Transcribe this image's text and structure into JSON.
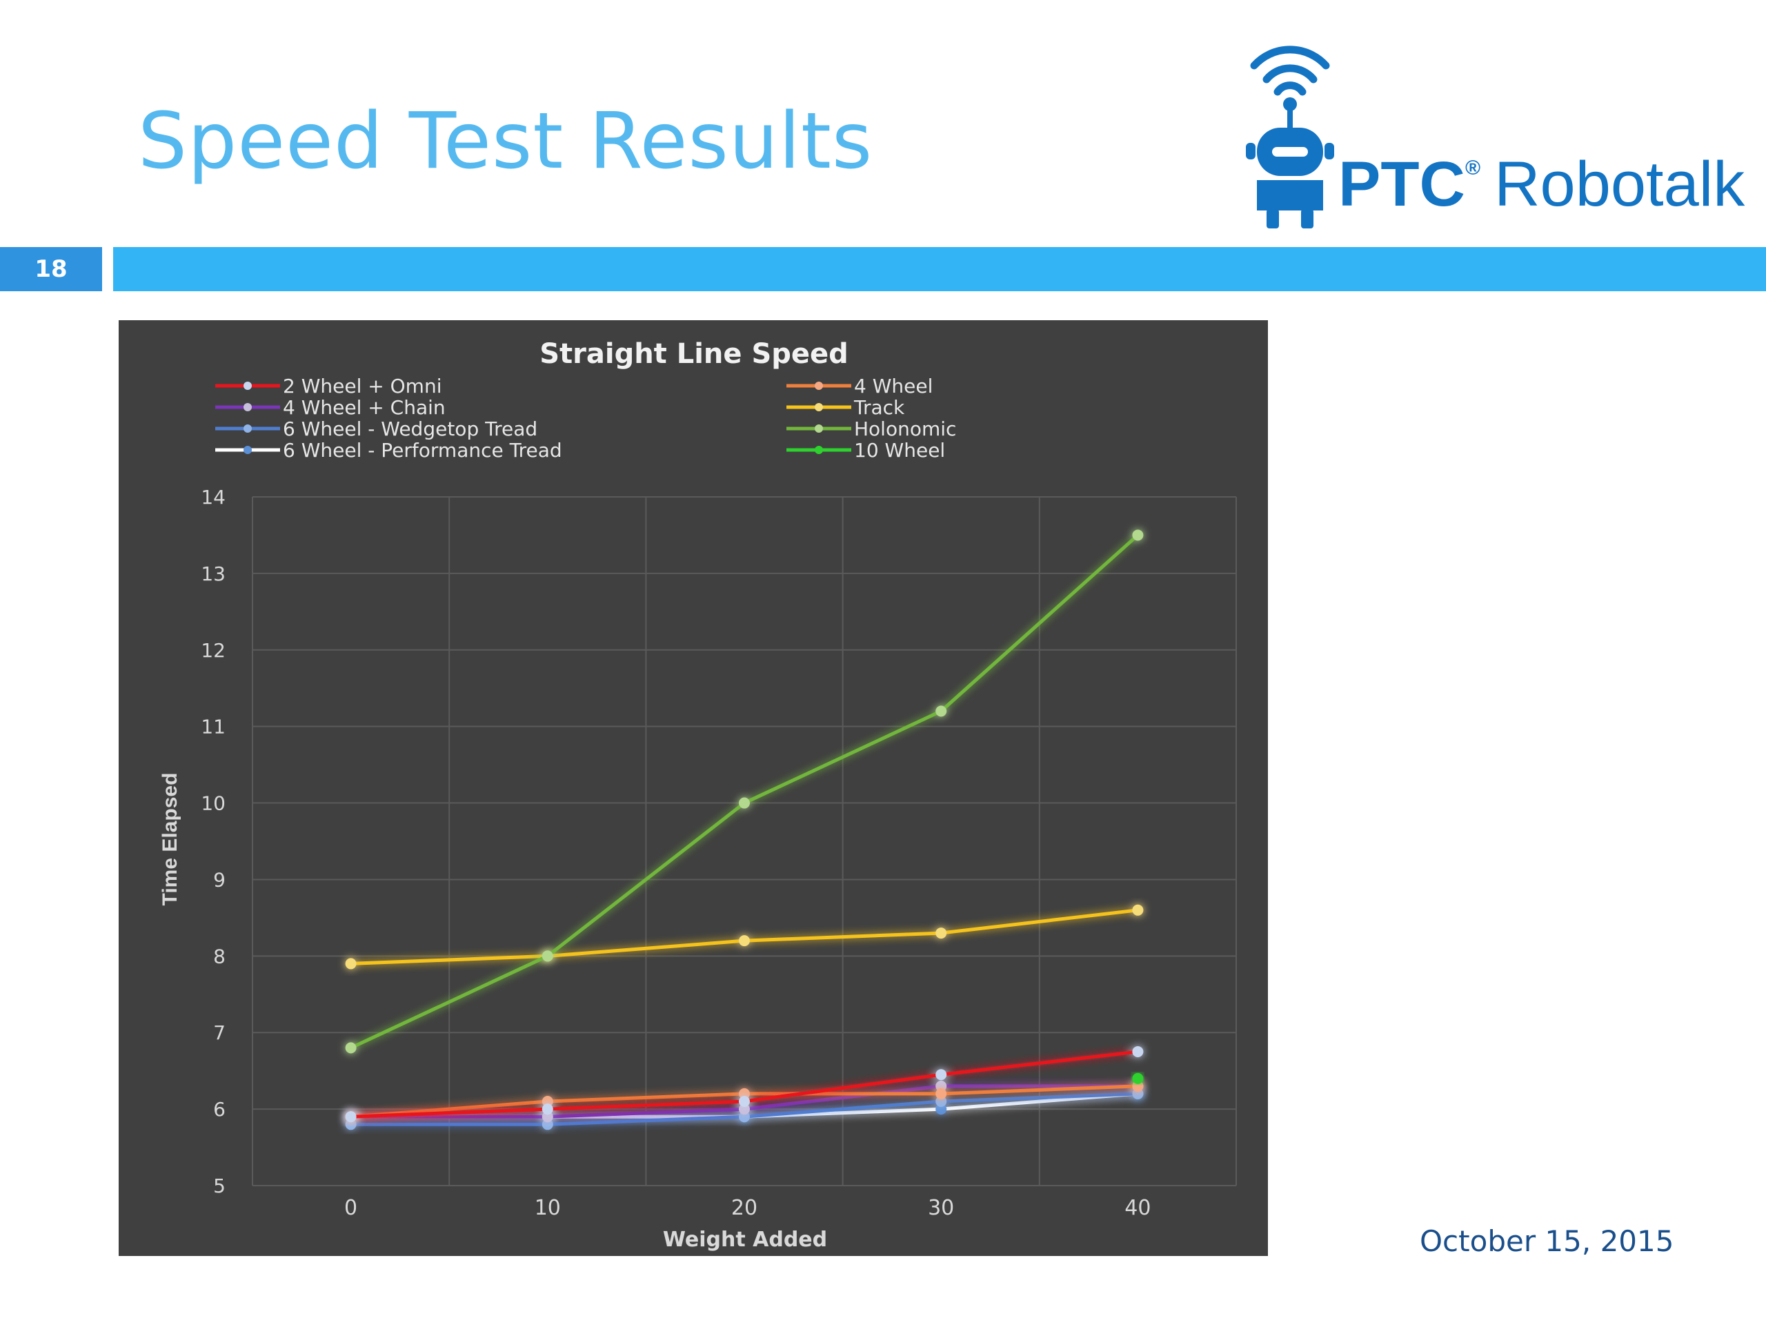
{
  "slide": {
    "title": "Speed Test Results",
    "page_number": "18",
    "date": "October 15, 2015"
  },
  "logo": {
    "brand": "PTC",
    "registered_mark": "®",
    "product": "Robotalk",
    "icon": "robot-wifi-icon",
    "color": "#1474c4"
  },
  "colors": {
    "title": "#55b9ef",
    "band": "#33b4f4",
    "badge": "#2f93e0",
    "chart_background": "#404040",
    "date": "#1a4f8b"
  },
  "chart_data": {
    "type": "line",
    "title": "Straight Line Speed",
    "xlabel": "Weight Added",
    "ylabel": "Time Elapsed",
    "x": [
      0,
      10,
      20,
      30,
      40
    ],
    "ylim": [
      5,
      14
    ],
    "yticks": [
      5,
      6,
      7,
      8,
      9,
      10,
      11,
      12,
      13,
      14
    ],
    "grid": true,
    "legend_position": "top",
    "series": [
      {
        "name": "2 Wheel + Omni",
        "color": "#e8141e",
        "marker": "#c9d6f0",
        "values": [
          5.9,
          6.0,
          6.1,
          6.45,
          6.75
        ]
      },
      {
        "name": "4 Wheel",
        "color": "#ef7f3c",
        "marker": "#f5a882",
        "values": [
          5.9,
          6.1,
          6.2,
          6.2,
          6.3
        ]
      },
      {
        "name": "4 Wheel + Chain",
        "color": "#7a35b8",
        "marker": "#c7bedc",
        "values": [
          5.9,
          5.9,
          6.0,
          6.3,
          6.3
        ]
      },
      {
        "name": "Track",
        "color": "#f5c31a",
        "marker": "#f7dc7a",
        "values": [
          7.9,
          8.0,
          8.2,
          8.3,
          8.6
        ]
      },
      {
        "name": "6 Wheel - Wedgetop Tread",
        "color": "#4f7ed0",
        "marker": "#8fb3e8",
        "values": [
          5.8,
          5.8,
          5.9,
          6.1,
          6.2
        ]
      },
      {
        "name": "Holonomic",
        "color": "#72b63c",
        "marker": "#b2d98e",
        "values": [
          6.8,
          8.0,
          10.0,
          11.2,
          13.5
        ]
      },
      {
        "name": "6 Wheel - Performance Tread",
        "color": "#ffffff",
        "marker": "#5b8fd6",
        "values": [
          5.9,
          5.9,
          5.9,
          6.0,
          6.2
        ]
      },
      {
        "name": "10 Wheel",
        "color": "#2fd12f",
        "marker": "#2fd12f",
        "values": [
          null,
          null,
          null,
          null,
          6.4
        ]
      }
    ]
  }
}
